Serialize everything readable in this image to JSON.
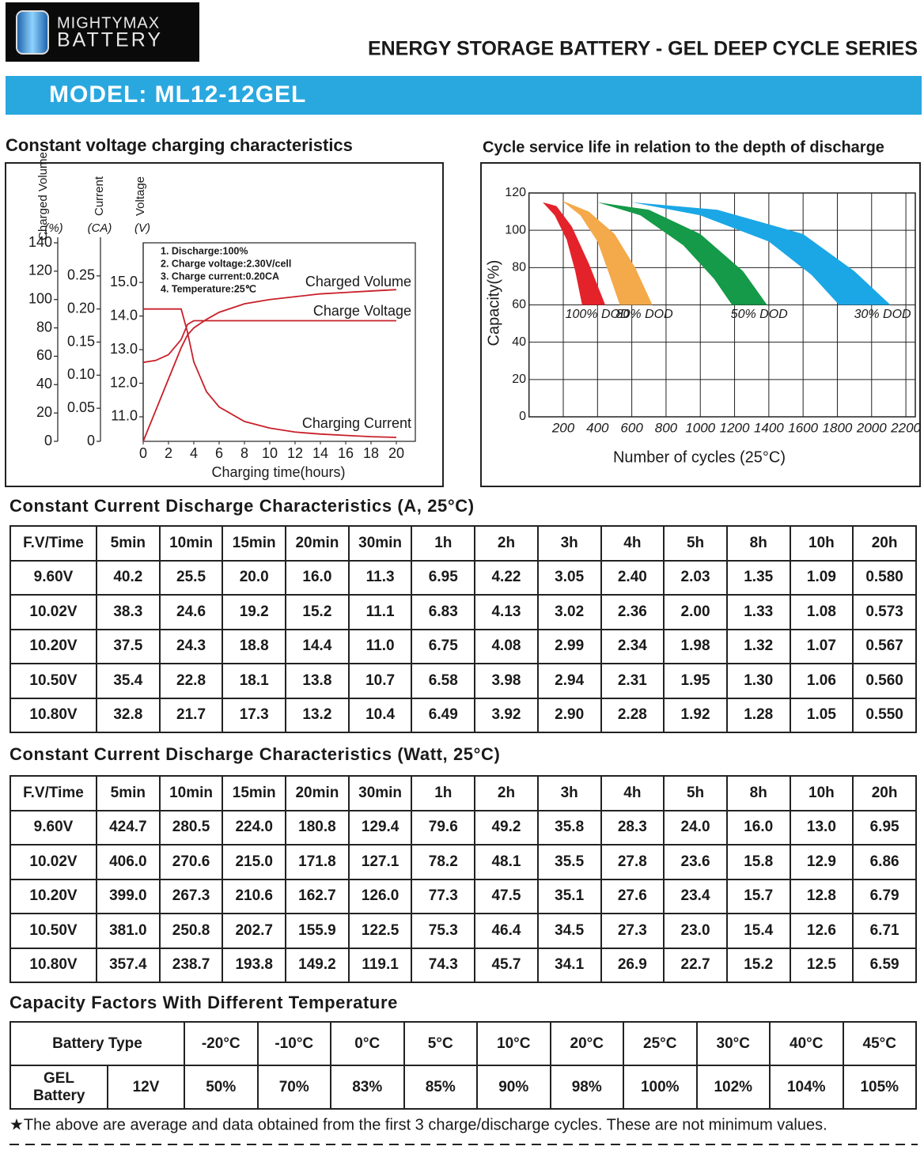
{
  "header": {
    "logo_top": "MIGHTYMAX",
    "logo_bottom": "BATTERY",
    "title": "ENERGY STORAGE BATTERY - GEL DEEP CYCLE SERIES",
    "model": "MODEL: ML12-12GEL"
  },
  "chart_data": [
    {
      "type": "line",
      "title": "Constant voltage charging characteristics",
      "xlabel": "Charging time(hours)",
      "x": [
        0,
        1,
        2,
        3,
        3.5,
        4,
        5,
        6,
        8,
        10,
        12,
        14,
        16,
        18,
        20
      ],
      "xlim": [
        0,
        21.5
      ],
      "xticks": [
        0,
        2,
        4,
        6,
        8,
        10,
        12,
        14,
        16,
        18,
        20
      ],
      "y_axes": [
        {
          "label": "Charged Volume",
          "unit": "(%)",
          "ylim": [
            0,
            140
          ],
          "yticks": [
            0,
            20,
            40,
            60,
            80,
            100,
            120,
            140
          ]
        },
        {
          "label": "Current",
          "unit": "(CA)",
          "ylim": [
            0,
            0.3
          ],
          "yticks": [
            0,
            0.05,
            {
              "value": 0.1,
              "label": "0.10"
            },
            0.15,
            {
              "value": 0.2,
              "label": "0.20"
            },
            0.25
          ]
        },
        {
          "label": "Voltage",
          "unit": "(V)",
          "ylim": [
            10.27,
            16.18
          ],
          "yticks": [
            {
              "value": 11,
              "label": "11.0"
            },
            {
              "value": 12,
              "label": "12.0"
            },
            {
              "value": 13,
              "label": "13.0"
            },
            {
              "value": 14,
              "label": "14.0"
            },
            {
              "value": 15,
              "label": "15.0"
            }
          ]
        }
      ],
      "notes": [
        "1. Discharge:100%",
        "2. Charge voltage:2.30V/cell",
        "3. Charge current:0.20CA",
        "4. Temperature:25℃"
      ],
      "series": [
        {
          "name": "Charged Volume",
          "color": "#c8202a",
          "axis": 0,
          "values": [
            0,
            22,
            44,
            66,
            75,
            80,
            86,
            91,
            97,
            100,
            102,
            104,
            105,
            106,
            107
          ]
        },
        {
          "name": "Charge Voltage",
          "color": "#c8202a",
          "axis": 2,
          "values": [
            12.62,
            12.68,
            12.85,
            13.3,
            13.75,
            13.86,
            13.86,
            13.86,
            13.86,
            13.86,
            13.86,
            13.86,
            13.86,
            13.86,
            13.86
          ]
        },
        {
          "name": "Charging Current",
          "color": "#c8202a",
          "axis": 1,
          "values": [
            0.2,
            0.2,
            0.2,
            0.2,
            0.165,
            0.12,
            0.075,
            0.052,
            0.03,
            0.02,
            0.014,
            0.011,
            0.009,
            0.007,
            0.006
          ]
        }
      ]
    },
    {
      "type": "area",
      "title": "Cycle service life in relation to the depth of discharge",
      "xlabel": "Number of cycles (25°C)",
      "ylabel": "Capacity(%)",
      "xlim": [
        0,
        2255
      ],
      "xticks": [
        200,
        400,
        600,
        800,
        1000,
        1200,
        1400,
        1600,
        1800,
        2000,
        2200
      ],
      "ylim": [
        0,
        120
      ],
      "yticks": [
        0,
        20,
        40,
        60,
        80,
        100,
        120
      ],
      "grid": true,
      "series": [
        {
          "name": "30% DOD",
          "color": "#1ba7e6",
          "x_upper": [
            200,
            600,
            1100,
            1600,
            1900,
            2110
          ],
          "upper": [
            114,
            115,
            111,
            98,
            78,
            60
          ],
          "x_lower": [
            200,
            600,
            1000,
            1400,
            1650,
            1810
          ],
          "lower": [
            114,
            115,
            108,
            94,
            76,
            60
          ]
        },
        {
          "name": "50% DOD",
          "color": "#149a48",
          "x_upper": [
            100,
            400,
            700,
            1000,
            1250,
            1390
          ],
          "upper": [
            113,
            115,
            111,
            98,
            78,
            60
          ],
          "x_lower": [
            100,
            400,
            650,
            900,
            1080,
            1185
          ],
          "lower": [
            113,
            115,
            108,
            92,
            74,
            60
          ]
        },
        {
          "name": "80% DOD",
          "color": "#f4a94a",
          "x_upper": [
            50,
            190,
            350,
            500,
            620,
            720
          ],
          "upper": [
            113,
            116,
            110,
            98,
            80,
            60
          ],
          "x_lower": [
            50,
            190,
            300,
            400,
            470,
            530
          ],
          "lower": [
            113,
            116,
            108,
            94,
            76,
            60
          ]
        },
        {
          "name": "100% DOD",
          "color": "#e4222a",
          "x_upper": [
            0,
            80,
            160,
            250,
            350,
            445
          ],
          "upper": [
            104,
            115,
            113,
            102,
            82,
            60
          ],
          "x_lower": [
            0,
            80,
            150,
            220,
            270,
            310
          ],
          "lower": [
            104,
            115,
            108,
            95,
            78,
            60
          ]
        }
      ]
    }
  ],
  "discharge_amps": {
    "title": "Constant Current Discharge Characteristics (A, 25°C)",
    "header": [
      "F.V/Time",
      "5min",
      "10min",
      "15min",
      "20min",
      "30min",
      "1h",
      "2h",
      "3h",
      "4h",
      "5h",
      "8h",
      "10h",
      "20h"
    ],
    "rows": [
      [
        "9.60V",
        "40.2",
        "25.5",
        "20.0",
        "16.0",
        "11.3",
        "6.95",
        "4.22",
        "3.05",
        "2.40",
        "2.03",
        "1.35",
        "1.09",
        "0.580"
      ],
      [
        "10.02V",
        "38.3",
        "24.6",
        "19.2",
        "15.2",
        "11.1",
        "6.83",
        "4.13",
        "3.02",
        "2.36",
        "2.00",
        "1.33",
        "1.08",
        "0.573"
      ],
      [
        "10.20V",
        "37.5",
        "24.3",
        "18.8",
        "14.4",
        "11.0",
        "6.75",
        "4.08",
        "2.99",
        "2.34",
        "1.98",
        "1.32",
        "1.07",
        "0.567"
      ],
      [
        "10.50V",
        "35.4",
        "22.8",
        "18.1",
        "13.8",
        "10.7",
        "6.58",
        "3.98",
        "2.94",
        "2.31",
        "1.95",
        "1.30",
        "1.06",
        "0.560"
      ],
      [
        "10.80V",
        "32.8",
        "21.7",
        "17.3",
        "13.2",
        "10.4",
        "6.49",
        "3.92",
        "2.90",
        "2.28",
        "1.92",
        "1.28",
        "1.05",
        "0.550"
      ]
    ]
  },
  "discharge_watts": {
    "title": "Constant Current Discharge Characteristics (Watt, 25°C)",
    "header": [
      "F.V/Time",
      "5min",
      "10min",
      "15min",
      "20min",
      "30min",
      "1h",
      "2h",
      "3h",
      "4h",
      "5h",
      "8h",
      "10h",
      "20h"
    ],
    "rows": [
      [
        "9.60V",
        "424.7",
        "280.5",
        "224.0",
        "180.8",
        "129.4",
        "79.6",
        "49.2",
        "35.8",
        "28.3",
        "24.0",
        "16.0",
        "13.0",
        "6.95"
      ],
      [
        "10.02V",
        "406.0",
        "270.6",
        "215.0",
        "171.8",
        "127.1",
        "78.2",
        "48.1",
        "35.5",
        "27.8",
        "23.6",
        "15.8",
        "12.9",
        "6.86"
      ],
      [
        "10.20V",
        "399.0",
        "267.3",
        "210.6",
        "162.7",
        "126.0",
        "77.3",
        "47.5",
        "35.1",
        "27.6",
        "23.4",
        "15.7",
        "12.8",
        "6.79"
      ],
      [
        "10.50V",
        "381.0",
        "250.8",
        "202.7",
        "155.9",
        "122.5",
        "75.3",
        "46.4",
        "34.5",
        "27.3",
        "23.0",
        "15.4",
        "12.6",
        "6.71"
      ],
      [
        "10.80V",
        "357.4",
        "238.7",
        "193.8",
        "149.2",
        "119.1",
        "74.3",
        "45.7",
        "34.1",
        "26.9",
        "22.7",
        "15.2",
        "12.5",
        "6.59"
      ]
    ]
  },
  "capacity_factors": {
    "title": "Capacity Factors With Different Temperature",
    "header_label": "Battery Type",
    "temperatures": [
      "-20°C",
      "-10°C",
      "0°C",
      "5°C",
      "10°C",
      "20°C",
      "25°C",
      "30°C",
      "40°C",
      "45°C"
    ],
    "battery_type": "GEL Battery",
    "voltage": "12V",
    "factors": [
      "50%",
      "70%",
      "83%",
      "85%",
      "90%",
      "98%",
      "100%",
      "102%",
      "104%",
      "105%"
    ]
  },
  "footnote": "★The above are average and data obtained from the first 3 charge/discharge cycles. These are not minimum values."
}
